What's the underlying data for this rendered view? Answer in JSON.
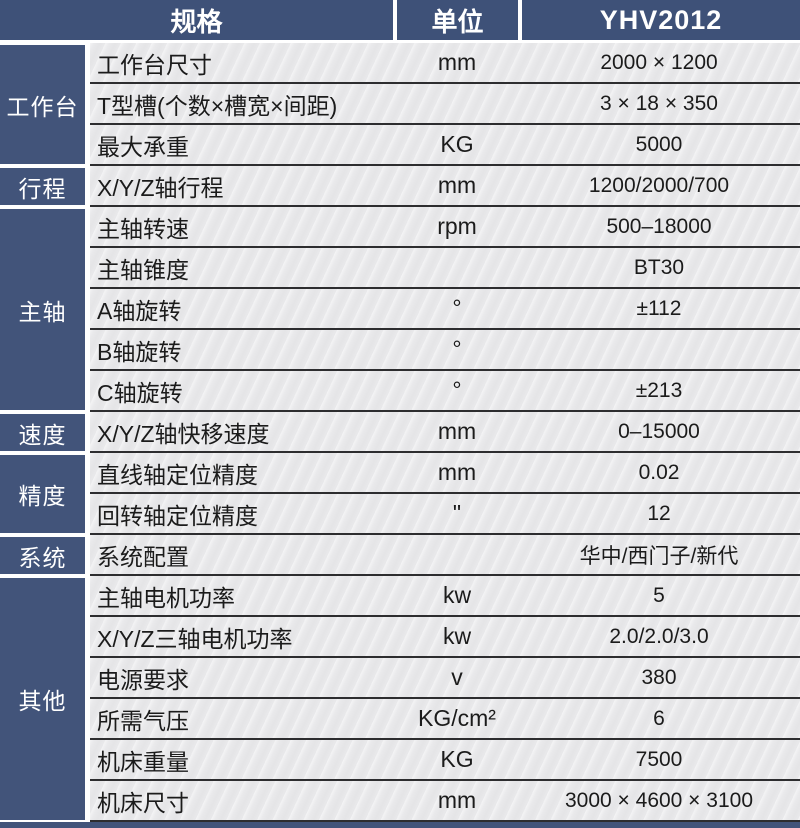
{
  "header": {
    "spec_label": "规格",
    "unit_label": "单位",
    "model": "YHV2012"
  },
  "groups": [
    {
      "category": "工作台",
      "rows": [
        {
          "name": "工作台尺寸",
          "unit": "mm",
          "value": "2000 × 1200"
        },
        {
          "name": "T型槽(个数×槽宽×间距)",
          "unit": "",
          "value": "3 × 18 × 350"
        },
        {
          "name": "最大承重",
          "unit": "KG",
          "value": "5000"
        }
      ]
    },
    {
      "category": "行程",
      "rows": [
        {
          "name": "X/Y/Z轴行程",
          "unit": "mm",
          "value": "1200/2000/700"
        }
      ]
    },
    {
      "category": "主轴",
      "rows": [
        {
          "name": "主轴转速",
          "unit": "rpm",
          "value": "500–18000"
        },
        {
          "name": "主轴锥度",
          "unit": "",
          "value": "BT30"
        },
        {
          "name": "A轴旋转",
          "unit": "°",
          "value": "±112"
        },
        {
          "name": "B轴旋转",
          "unit": "°",
          "value": ""
        },
        {
          "name": "C轴旋转",
          "unit": "°",
          "value": "±213"
        }
      ]
    },
    {
      "category": "速度",
      "rows": [
        {
          "name": "X/Y/Z轴快移速度",
          "unit": "mm",
          "value": "0–15000"
        }
      ]
    },
    {
      "category": "精度",
      "rows": [
        {
          "name": "直线轴定位精度",
          "unit": "mm",
          "value": "0.02"
        },
        {
          "name": "回转轴定位精度",
          "unit": "\"",
          "value": "12"
        }
      ]
    },
    {
      "category": "系统",
      "rows": [
        {
          "name": "系统配置",
          "unit": "",
          "value": "华中/西门子/新代"
        }
      ]
    },
    {
      "category": "其他",
      "rows": [
        {
          "name": "主轴电机功率",
          "unit": "kw",
          "value": "5"
        },
        {
          "name": "X/Y/Z三轴电机功率",
          "unit": "kw",
          "value": "2.0/2.0/3.0"
        },
        {
          "name": "电源要求",
          "unit": "v",
          "value": "380"
        },
        {
          "name": "所需气压",
          "unit": "KG/cm²",
          "value": "6"
        },
        {
          "name": "机床重量",
          "unit": "KG",
          "value": "7500"
        },
        {
          "name": "机床尺寸",
          "unit": "mm",
          "value": "3000 × 4600 × 3100"
        }
      ]
    }
  ],
  "colors": {
    "header_bg": "#3e5178",
    "category_bg": "#42547a",
    "row_bg": "#e9e9eb",
    "divider": "#2d2d2f",
    "text": "#1b1b1b",
    "header_text": "#ffffff"
  }
}
